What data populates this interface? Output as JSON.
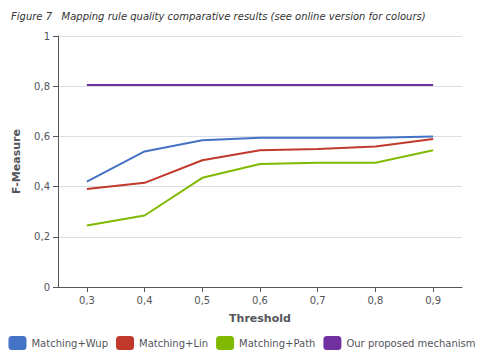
{
  "chart_data": {
    "type": "line",
    "title": "Figure 7   Mapping rule quality comparative results (see online version for colours)",
    "x": [
      0.3,
      0.4,
      0.5,
      0.6,
      0.7,
      0.8,
      0.9
    ],
    "series": [
      {
        "name": "Matching+Wup",
        "color": "#4472C4",
        "values": [
          0.42,
          0.54,
          0.585,
          0.595,
          0.595,
          0.595,
          0.6
        ]
      },
      {
        "name": "Matching+Lin",
        "color": "#C0392B",
        "values": [
          0.39,
          0.415,
          0.505,
          0.545,
          0.55,
          0.56,
          0.59
        ]
      },
      {
        "name": "Matching+Path",
        "color": "#7FBA00",
        "values": [
          0.245,
          0.285,
          0.435,
          0.49,
          0.495,
          0.495,
          0.545
        ]
      },
      {
        "name": "Our proposed mechanism",
        "color": "#7030A0",
        "values": [
          0.805,
          0.805,
          0.805,
          0.805,
          0.805,
          0.805,
          0.805
        ]
      }
    ],
    "xlabel": "Threshold",
    "ylabel": "F-Measure",
    "xlim": [
      0.25,
      0.95
    ],
    "ylim": [
      0,
      1.0
    ],
    "xticks": [
      {
        "value": 0.3,
        "label": "0,3"
      },
      {
        "value": 0.4,
        "label": "0,4"
      },
      {
        "value": 0.5,
        "label": "0,5"
      },
      {
        "value": 0.6,
        "label": "0,6"
      },
      {
        "value": 0.7,
        "label": "0,7"
      },
      {
        "value": 0.8,
        "label": "0,8"
      },
      {
        "value": 0.9,
        "label": "0,9"
      }
    ],
    "yticks": [
      0,
      {
        "value": 0.2,
        "label": "0,2"
      },
      {
        "value": 0.4,
        "label": "0,4"
      },
      {
        "value": 0.6,
        "label": "0,6"
      },
      {
        "value": 0.8,
        "label": "0,8"
      },
      1
    ],
    "grid": true,
    "legend": "bottom"
  }
}
